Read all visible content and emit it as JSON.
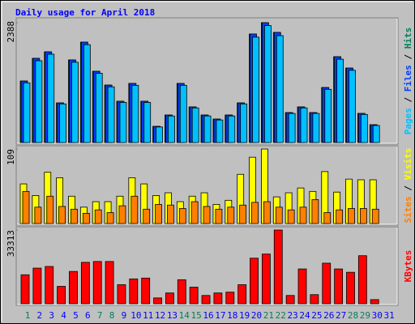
{
  "chart_data": [
    {
      "type": "bar",
      "title": "Daily usage for April 2018",
      "ylim": [
        0,
        2388
      ],
      "yticks": [
        2388
      ],
      "legend_separator": " / ",
      "series": [
        {
          "name": "Hits",
          "color": "#00805c",
          "values": [
            1226,
            1678,
            1807,
            790,
            1646,
            2000,
            1420,
            1145,
            823,
            1178,
            823,
            323,
            549,
            1178,
            710,
            549,
            468,
            549,
            790,
            2162,
            2388,
            2194,
            597,
            710,
            597,
            1097,
            1710,
            1484,
            581,
            355,
            0
          ]
        },
        {
          "name": "Files",
          "color": "#0040ff",
          "values": [
            1226,
            1678,
            1807,
            790,
            1646,
            2000,
            1420,
            1145,
            823,
            1178,
            823,
            323,
            549,
            1178,
            710,
            549,
            468,
            549,
            790,
            2162,
            2388,
            2194,
            597,
            710,
            597,
            1097,
            1710,
            1484,
            581,
            355,
            0
          ]
        },
        {
          "name": "Pages",
          "color": "#00c0ff",
          "values": [
            1190,
            1630,
            1760,
            770,
            1600,
            1950,
            1380,
            1110,
            800,
            1140,
            800,
            310,
            530,
            1140,
            690,
            530,
            450,
            530,
            770,
            2100,
            2330,
            2130,
            580,
            690,
            580,
            1060,
            1660,
            1440,
            560,
            340,
            0
          ]
        }
      ]
    },
    {
      "type": "bar",
      "ylim": [
        0,
        109
      ],
      "yticks": [
        109
      ],
      "legend_separator": " / ",
      "series": [
        {
          "name": "Visits",
          "color": "#ffff00",
          "values": [
            58,
            41,
            75,
            67,
            40,
            24,
            32,
            32,
            40,
            67,
            58,
            41,
            45,
            32,
            40,
            45,
            28,
            34,
            72,
            97,
            109,
            39,
            45,
            52,
            47,
            76,
            46,
            65,
            64,
            64,
            0
          ]
        },
        {
          "name": "Sites",
          "color": "#ff8000",
          "values": [
            47,
            24,
            40,
            25,
            21,
            15,
            20,
            16,
            26,
            40,
            21,
            28,
            27,
            22,
            32,
            25,
            21,
            24,
            27,
            31,
            32,
            24,
            20,
            24,
            35,
            16,
            20,
            22,
            22,
            21,
            0
          ]
        }
      ]
    },
    {
      "type": "bar",
      "ylim": [
        0,
        33313
      ],
      "yticks": [
        33313
      ],
      "categories": [
        "1",
        "2",
        "3",
        "4",
        "5",
        "6",
        "7",
        "8",
        "9",
        "10",
        "11",
        "12",
        "13",
        "14",
        "15",
        "16",
        "17",
        "18",
        "19",
        "20",
        "21",
        "22",
        "23",
        "24",
        "25",
        "26",
        "27",
        "28",
        "29",
        "30",
        "31"
      ],
      "category_colors": [
        "#00805c",
        "#0000ff",
        "#0000ff",
        "#0000ff",
        "#0000ff",
        "#0000ff",
        "#00805c",
        "#00805c",
        "#0000ff",
        "#0000ff",
        "#0000ff",
        "#0000ff",
        "#0000ff",
        "#00805c",
        "#00805c",
        "#0000ff",
        "#0000ff",
        "#0000ff",
        "#0000ff",
        "#0000ff",
        "#00805c",
        "#00805c",
        "#0000ff",
        "#0000ff",
        "#0000ff",
        "#0000ff",
        "#0000ff",
        "#00805c",
        "#00805c",
        "#0000ff",
        "#0000ff"
      ],
      "series": [
        {
          "name": "KBytes",
          "color": "#ff0000",
          "values": [
            13100,
            16094,
            16843,
            7860,
            14597,
            18714,
            19089,
            19089,
            8609,
            11229,
            11603,
            2620,
            4866,
            10854,
            7486,
            3743,
            4866,
            5240,
            8609,
            20586,
            22457,
            33313,
            3743,
            15720,
            4117,
            18340,
            15720,
            14223,
            21709,
            1871,
            0
          ]
        }
      ]
    }
  ]
}
